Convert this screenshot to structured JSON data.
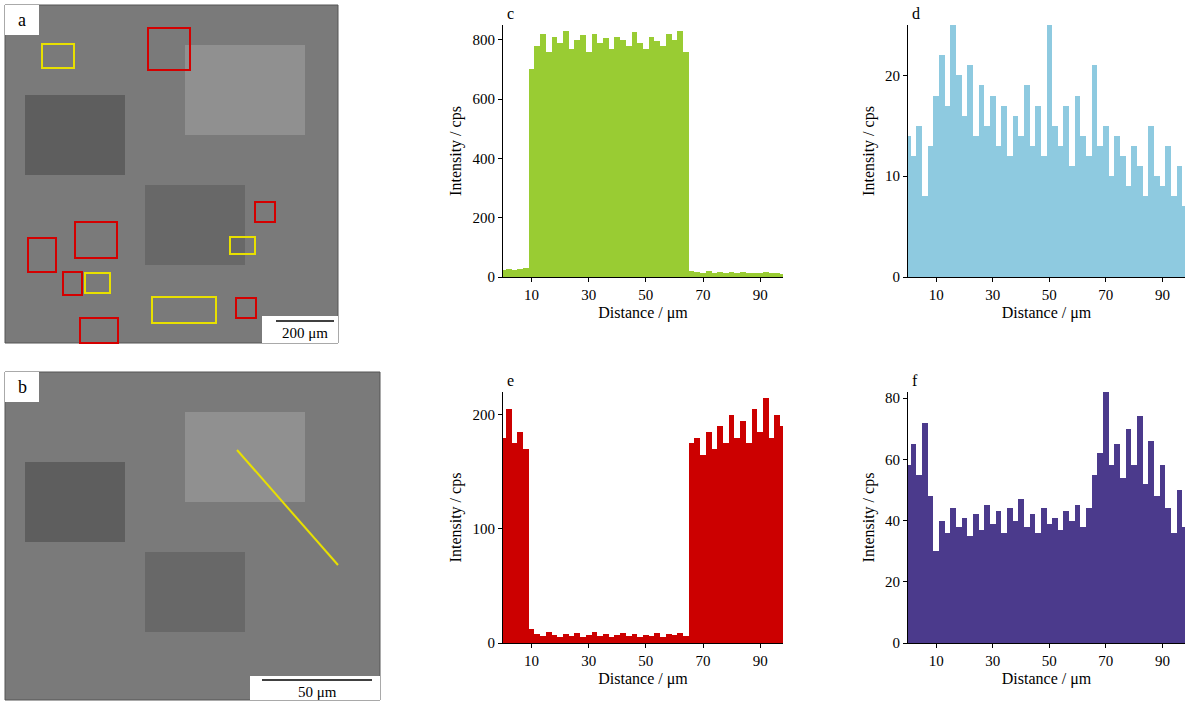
{
  "images": [
    {
      "panel": "a",
      "scale_bar": "200 μm"
    },
    {
      "panel": "b",
      "scale_bar": "50 μm"
    }
  ],
  "chart_data": [
    {
      "type": "bar",
      "panel": "c",
      "x_label": "Distance / μm",
      "y_label": "Intensity / cps",
      "color": "#99cc33",
      "x": [
        0,
        2,
        4,
        6,
        8,
        10,
        12,
        14,
        16,
        18,
        20,
        22,
        24,
        26,
        28,
        30,
        32,
        34,
        36,
        38,
        40,
        42,
        44,
        46,
        48,
        50,
        52,
        54,
        56,
        58,
        60,
        62,
        64,
        66,
        68,
        70,
        72,
        74,
        76,
        78,
        80,
        82,
        84,
        86,
        88,
        90,
        92,
        94,
        96,
        98
      ],
      "values": [
        25,
        28,
        22,
        26,
        30,
        700,
        780,
        820,
        760,
        810,
        790,
        830,
        770,
        800,
        815,
        760,
        820,
        790,
        805,
        770,
        810,
        800,
        780,
        825,
        790,
        770,
        810,
        795,
        780,
        820,
        800,
        830,
        760,
        20,
        18,
        15,
        20,
        14,
        17,
        15,
        18,
        12,
        16,
        14,
        15,
        13,
        16,
        12,
        14,
        10
      ],
      "xlim": [
        0,
        98
      ],
      "xticks": [
        10,
        30,
        50,
        70,
        90
      ],
      "ylim": [
        0,
        850
      ],
      "yticks": [
        0,
        200,
        400,
        600,
        800
      ],
      "grid": false
    },
    {
      "type": "bar",
      "panel": "d",
      "x_label": "Distance / μm",
      "y_label": "Intensity / cps",
      "color": "#8ecae0",
      "x": [
        0,
        2,
        4,
        6,
        8,
        10,
        12,
        14,
        16,
        18,
        20,
        22,
        24,
        26,
        28,
        30,
        32,
        34,
        36,
        38,
        40,
        42,
        44,
        46,
        48,
        50,
        52,
        54,
        56,
        58,
        60,
        62,
        64,
        66,
        68,
        70,
        72,
        74,
        76,
        78,
        80,
        82,
        84,
        86,
        88,
        90,
        92,
        94,
        96,
        98
      ],
      "values": [
        14,
        12,
        15,
        8,
        13,
        18,
        22,
        17,
        25,
        20,
        16,
        21,
        14,
        19,
        15,
        18,
        13,
        17,
        12,
        16,
        14,
        19,
        13,
        17,
        12,
        25,
        15,
        13,
        17,
        11,
        18,
        14,
        12,
        21,
        13,
        15,
        10,
        14,
        12,
        9,
        13,
        11,
        8,
        15,
        10,
        9,
        13,
        8,
        11,
        7
      ],
      "xlim": [
        0,
        98
      ],
      "xticks": [
        10,
        30,
        50,
        70,
        90
      ],
      "ylim": [
        0,
        25
      ],
      "yticks": [
        0,
        10,
        20
      ],
      "grid": false
    },
    {
      "type": "bar",
      "panel": "e",
      "x_label": "Distance / μm",
      "y_label": "Intensity / cps",
      "color": "#cc0000",
      "x": [
        0,
        2,
        4,
        6,
        8,
        10,
        12,
        14,
        16,
        18,
        20,
        22,
        24,
        26,
        28,
        30,
        32,
        34,
        36,
        38,
        40,
        42,
        44,
        46,
        48,
        50,
        52,
        54,
        56,
        58,
        60,
        62,
        64,
        66,
        68,
        70,
        72,
        74,
        76,
        78,
        80,
        82,
        84,
        86,
        88,
        90,
        92,
        94,
        96,
        98
      ],
      "values": [
        180,
        205,
        175,
        185,
        170,
        12,
        8,
        6,
        10,
        7,
        5,
        8,
        6,
        9,
        5,
        7,
        10,
        6,
        8,
        5,
        7,
        9,
        6,
        8,
        5,
        7,
        6,
        9,
        5,
        8,
        7,
        9,
        6,
        175,
        180,
        165,
        185,
        170,
        190,
        175,
        200,
        180,
        195,
        175,
        205,
        185,
        215,
        180,
        200,
        190
      ],
      "xlim": [
        0,
        98
      ],
      "xticks": [
        10,
        30,
        50,
        70,
        90
      ],
      "ylim": [
        0,
        220
      ],
      "yticks": [
        0,
        100,
        200
      ],
      "grid": false
    },
    {
      "type": "bar",
      "panel": "f",
      "x_label": "Distance / μm",
      "y_label": "Intensity / cps",
      "color": "#4b3a8c",
      "x": [
        0,
        2,
        4,
        6,
        8,
        10,
        12,
        14,
        16,
        18,
        20,
        22,
        24,
        26,
        28,
        30,
        32,
        34,
        36,
        38,
        40,
        42,
        44,
        46,
        48,
        50,
        52,
        54,
        56,
        58,
        60,
        62,
        64,
        66,
        68,
        70,
        72,
        74,
        76,
        78,
        80,
        82,
        84,
        86,
        88,
        90,
        92,
        94,
        96,
        98
      ],
      "values": [
        58,
        65,
        55,
        72,
        48,
        30,
        40,
        36,
        44,
        38,
        41,
        35,
        42,
        37,
        45,
        39,
        43,
        36,
        44,
        40,
        47,
        38,
        42,
        36,
        44,
        39,
        41,
        37,
        43,
        40,
        45,
        38,
        44,
        55,
        62,
        82,
        58,
        65,
        54,
        70,
        58,
        74,
        52,
        66,
        48,
        58,
        44,
        36,
        50,
        38
      ],
      "xlim": [
        0,
        98
      ],
      "xticks": [
        10,
        30,
        50,
        70,
        90
      ],
      "ylim": [
        0,
        82
      ],
      "yticks": [
        0,
        20,
        40,
        60,
        80
      ],
      "grid": false
    }
  ]
}
